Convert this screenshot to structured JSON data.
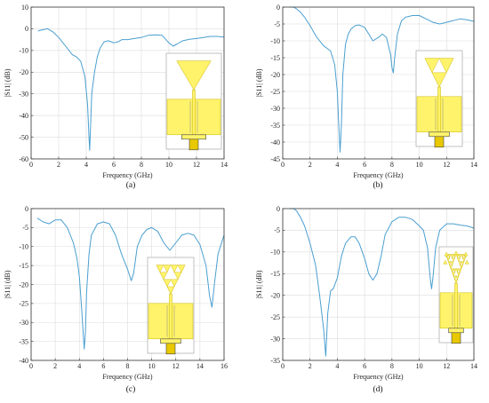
{
  "colors": {
    "curve": "#4a9fd0",
    "antenna": "#fff36b",
    "antenna_edge": "#c9b500",
    "feed": "#e8c800"
  },
  "chart_data": [
    {
      "type": "line",
      "caption": "(a)",
      "xlabel": "Frequency (GHz)",
      "ylabel": "|S11| (dB)",
      "xlim": [
        0,
        14
      ],
      "ylim": [
        -60,
        10
      ],
      "xticks": [
        0,
        2,
        4,
        6,
        8,
        10,
        12,
        14
      ],
      "yticks": [
        10,
        0,
        -10,
        -20,
        -30,
        -40,
        -50,
        -60
      ],
      "grid": true,
      "antenna_icon": "triangle-monopole-icon",
      "series": [
        {
          "x": [
            0.5,
            0.8,
            1.2,
            1.6,
            2.0,
            2.5,
            3.0,
            3.3,
            3.6,
            3.9,
            4.1,
            4.2,
            4.25,
            4.3,
            4.4,
            4.6,
            4.8,
            5.0,
            5.3,
            5.6,
            6.0,
            6.3,
            6.6,
            7.0,
            7.5,
            8.0,
            8.5,
            9.0,
            9.5,
            10.0,
            10.3,
            10.6,
            11.0,
            11.5,
            12.0,
            12.5,
            13.0,
            13.5,
            14.0
          ],
          "y": [
            -1,
            -0.5,
            0,
            -1.5,
            -4,
            -8,
            -12,
            -13,
            -15,
            -22,
            -35,
            -50,
            -56,
            -48,
            -30,
            -20,
            -13,
            -9,
            -6,
            -5.5,
            -6.5,
            -6,
            -5,
            -5,
            -4.5,
            -4,
            -3,
            -2.8,
            -3,
            -6.5,
            -8,
            -7,
            -5.5,
            -4.8,
            -4.5,
            -4,
            -3.5,
            -3.5,
            -3.8
          ]
        }
      ]
    },
    {
      "type": "line",
      "caption": "(b)",
      "xlabel": "Frequency (GHz)",
      "ylabel": "|S11| (dB)",
      "xlim": [
        0,
        14
      ],
      "ylim": [
        -45,
        0
      ],
      "xticks": [
        0,
        2,
        4,
        6,
        8,
        10,
        12,
        14
      ],
      "yticks": [
        0,
        -5,
        -10,
        -15,
        -20,
        -25,
        -30,
        -35,
        -40,
        -45
      ],
      "grid": true,
      "antenna_icon": "sierpinski-iteration-1-icon",
      "series": [
        {
          "x": [
            0.5,
            0.8,
            1.0,
            1.3,
            1.6,
            2.0,
            2.5,
            3.0,
            3.5,
            3.8,
            4.0,
            4.1,
            4.2,
            4.3,
            4.4,
            4.6,
            4.8,
            5.0,
            5.3,
            5.6,
            6.0,
            6.3,
            6.6,
            7.0,
            7.3,
            7.6,
            7.9,
            8.0,
            8.1,
            8.2,
            8.4,
            8.7,
            9.0,
            9.5,
            10.0,
            10.5,
            11.0,
            11.5,
            12.0,
            12.5,
            13.0,
            13.5,
            14.0
          ],
          "y": [
            0,
            0,
            -0.5,
            -1.5,
            -3,
            -5.5,
            -9,
            -11.5,
            -13,
            -17,
            -25,
            -35,
            -43,
            -35,
            -20,
            -11,
            -8,
            -6.5,
            -5.5,
            -5.3,
            -6,
            -8,
            -10,
            -9,
            -8,
            -9,
            -14,
            -18,
            -19.5,
            -15,
            -8,
            -4,
            -3,
            -2.5,
            -2.5,
            -3.5,
            -4.5,
            -5,
            -4.5,
            -4,
            -3.5,
            -3.8,
            -4.2
          ]
        }
      ]
    },
    {
      "type": "line",
      "caption": "(c)",
      "xlabel": "Frequency (GHz)",
      "ylabel": "|S11| (dB)",
      "xlim": [
        0,
        16
      ],
      "ylim": [
        -40,
        0
      ],
      "xticks": [
        0,
        2,
        4,
        6,
        8,
        10,
        12,
        14,
        16
      ],
      "yticks": [
        0,
        -5,
        -10,
        -15,
        -20,
        -25,
        -30,
        -35,
        -40
      ],
      "grid": true,
      "antenna_icon": "sierpinski-iteration-2-icon",
      "series": [
        {
          "x": [
            0.5,
            1.0,
            1.5,
            2.0,
            2.5,
            3.0,
            3.5,
            3.8,
            4.0,
            4.2,
            4.4,
            4.5,
            4.6,
            4.8,
            5.0,
            5.5,
            6.0,
            6.5,
            7.0,
            7.5,
            8.0,
            8.3,
            8.5,
            8.8,
            9.2,
            9.6,
            10.0,
            10.5,
            11.0,
            11.5,
            12.0,
            12.5,
            13.0,
            13.5,
            14.0,
            14.5,
            14.8,
            15.0,
            15.2,
            15.5,
            16.0
          ],
          "y": [
            -2.5,
            -3.5,
            -4,
            -3,
            -3,
            -5,
            -9,
            -13,
            -18,
            -27,
            -37,
            -33,
            -22,
            -12,
            -7,
            -4,
            -3.5,
            -4,
            -7,
            -12,
            -16,
            -19,
            -17,
            -10,
            -7,
            -5.5,
            -5,
            -6,
            -9,
            -11,
            -9,
            -7,
            -6.5,
            -7,
            -9.5,
            -15,
            -23,
            -26,
            -20,
            -12,
            -7
          ]
        }
      ]
    },
    {
      "type": "line",
      "caption": "(d)",
      "xlabel": "Frequency (GHz)",
      "ylabel": "|S11| (dB)",
      "xlim": [
        0,
        14
      ],
      "ylim": [
        -35,
        0
      ],
      "xticks": [
        0,
        2,
        4,
        6,
        8,
        10,
        12,
        14
      ],
      "yticks": [
        0,
        -5,
        -10,
        -15,
        -20,
        -25,
        -30,
        -35
      ],
      "grid": true,
      "antenna_icon": "sierpinski-iteration-3-icon",
      "series": [
        {
          "x": [
            0.5,
            0.8,
            1.0,
            1.3,
            1.6,
            2.0,
            2.4,
            2.7,
            3.0,
            3.15,
            3.3,
            3.5,
            3.7,
            4.0,
            4.3,
            4.6,
            5.0,
            5.3,
            5.6,
            6.0,
            6.3,
            6.6,
            6.9,
            7.2,
            7.5,
            8.0,
            8.5,
            9.0,
            9.5,
            10.0,
            10.3,
            10.6,
            10.8,
            10.9,
            11.0,
            11.2,
            11.5,
            12.0,
            12.5,
            13.0,
            13.5,
            14.0
          ],
          "y": [
            0,
            0,
            -0.5,
            -2,
            -4,
            -8,
            -13,
            -20,
            -28,
            -34,
            -24,
            -19,
            -18.5,
            -16,
            -11,
            -8,
            -6.5,
            -6.5,
            -8,
            -11.5,
            -15,
            -16.5,
            -15,
            -11,
            -6,
            -3,
            -2,
            -2,
            -2.5,
            -4,
            -5,
            -9,
            -16,
            -18.5,
            -16,
            -9,
            -5,
            -3.5,
            -3.5,
            -3.8,
            -4,
            -4.5
          ]
        }
      ]
    }
  ]
}
